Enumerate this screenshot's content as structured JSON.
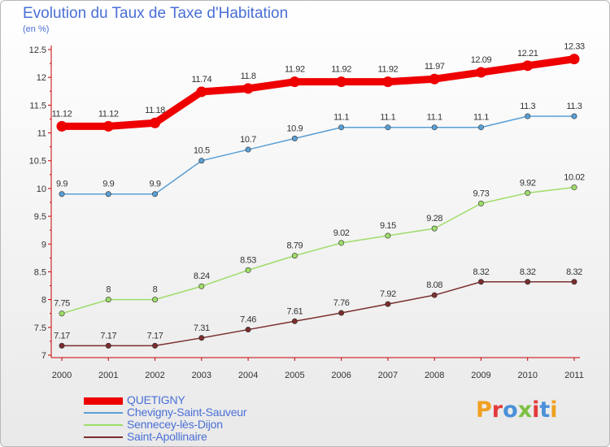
{
  "title": "Evolution du Taux de Taxe d'Habitation",
  "subtitle": "(en %)",
  "logo": {
    "text": "Proxiti",
    "colors": [
      "#f0a020",
      "#e43b3b",
      "#4a90d9",
      "#7cc142",
      "#e43b3b",
      "#4a90d9",
      "#f0a020"
    ]
  },
  "chart_data": {
    "type": "line",
    "x": [
      "2000",
      "2001",
      "2002",
      "2003",
      "2004",
      "2005",
      "2006",
      "2007",
      "2008",
      "2009",
      "2010",
      "2011"
    ],
    "ylim": [
      7,
      12.5
    ],
    "yticks": [
      "7",
      "7.5",
      "8",
      "8.5",
      "9",
      "9.5",
      "10",
      "10.5",
      "11",
      "11.5",
      "12",
      "12.5"
    ],
    "grid": false,
    "legend_position": "bottom-left",
    "series": [
      {
        "name": "QUETIGNY",
        "color": "#ee0000",
        "width": 9,
        "values": [
          11.12,
          11.12,
          11.18,
          11.74,
          11.8,
          11.92,
          11.92,
          11.92,
          11.97,
          12.09,
          12.21,
          12.33
        ],
        "labels": [
          "11.12",
          "11.12",
          "11.18",
          "11.74",
          "11.8",
          "11.92",
          "11.92",
          "11.92",
          "11.97",
          "12.09",
          "12.21",
          "12.33"
        ]
      },
      {
        "name": "Chevigny-Saint-Sauveur",
        "color": "#5a9fd4",
        "width": 1.5,
        "values": [
          9.9,
          9.9,
          9.9,
          10.5,
          10.7,
          10.9,
          11.1,
          11.1,
          11.1,
          11.1,
          11.3,
          11.3
        ],
        "labels": [
          "9.9",
          "9.9",
          "9.9",
          "10.5",
          "10.7",
          "10.9",
          "11.1",
          "11.1",
          "11.1",
          "11.1",
          "11.3",
          "11.3"
        ]
      },
      {
        "name": "Sennecey-lès-Dijon",
        "color": "#9fdc6a",
        "width": 1.5,
        "values": [
          7.75,
          8,
          8,
          8.24,
          8.53,
          8.79,
          9.02,
          9.15,
          9.28,
          9.73,
          9.92,
          10.02
        ],
        "labels": [
          "7.75",
          "8",
          "8",
          "8.24",
          "8.53",
          "8.79",
          "9.02",
          "9.15",
          "9.28",
          "9.73",
          "9.92",
          "10.02"
        ]
      },
      {
        "name": "Saint-Apollinaire",
        "color": "#7a2e2e",
        "width": 1.5,
        "values": [
          7.17,
          7.17,
          7.17,
          7.31,
          7.46,
          7.61,
          7.76,
          7.92,
          8.08,
          8.32,
          8.32,
          8.32
        ],
        "labels": [
          "7.17",
          "7.17",
          "7.17",
          "7.31",
          "7.46",
          "7.61",
          "7.76",
          "7.92",
          "8.08",
          "8.32",
          "8.32",
          "8.32"
        ]
      }
    ]
  }
}
